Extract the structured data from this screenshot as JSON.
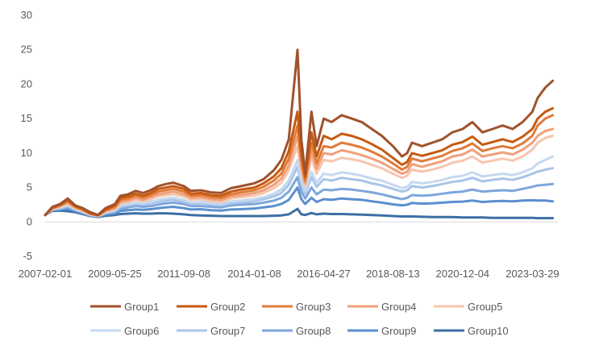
{
  "chart_data": {
    "type": "line",
    "title": "",
    "xlabel": "",
    "ylabel": "",
    "ylim": [
      -5,
      30
    ],
    "yticks": [
      -5,
      0,
      5,
      10,
      15,
      20,
      25,
      30
    ],
    "ytick_labels": [
      "-5",
      "0",
      "5",
      "10",
      "15",
      "20",
      "25",
      "30"
    ],
    "xlim": [
      "2007-02-01",
      "2024-02-01"
    ],
    "xticks": [
      "2007-02-01",
      "2009-05-25",
      "2011-09-08",
      "2014-01-08",
      "2016-04-27",
      "2018-08-13",
      "2020-12-04",
      "2023-03-29"
    ],
    "grid": false,
    "legend": "bottom",
    "x": [
      "2007-02-01",
      "2007-05-01",
      "2007-08-01",
      "2007-11-01",
      "2008-02-01",
      "2008-05-01",
      "2008-08-01",
      "2008-11-01",
      "2009-02-01",
      "2009-05-25",
      "2009-08-01",
      "2009-11-01",
      "2010-02-01",
      "2010-05-01",
      "2010-08-01",
      "2010-11-01",
      "2011-02-01",
      "2011-05-01",
      "2011-09-08",
      "2011-12-01",
      "2012-04-01",
      "2012-08-01",
      "2012-12-01",
      "2013-04-01",
      "2013-08-01",
      "2014-01-08",
      "2014-05-01",
      "2014-09-01",
      "2014-12-01",
      "2015-03-01",
      "2015-06-15",
      "2015-08-01",
      "2015-09-15",
      "2015-12-01",
      "2016-02-01",
      "2016-04-27",
      "2016-08-01",
      "2016-12-01",
      "2017-04-01",
      "2017-08-01",
      "2017-12-01",
      "2018-04-01",
      "2018-08-13",
      "2018-12-01",
      "2019-02-01",
      "2019-04-01",
      "2019-08-01",
      "2019-12-01",
      "2020-04-01",
      "2020-08-01",
      "2020-12-04",
      "2021-04-01",
      "2021-08-01",
      "2021-12-01",
      "2022-04-01",
      "2022-08-01",
      "2022-12-01",
      "2023-03-29",
      "2023-06-01",
      "2023-09-01",
      "2023-12-01"
    ],
    "series": [
      {
        "name": "Group1",
        "color": "#a0522d",
        "values": [
          1.0,
          2.2,
          2.6,
          3.4,
          2.4,
          2.0,
          1.4,
          1.0,
          2.0,
          2.6,
          3.8,
          4.0,
          4.5,
          4.2,
          4.6,
          5.2,
          5.5,
          5.7,
          5.2,
          4.5,
          4.6,
          4.3,
          4.2,
          4.9,
          5.2,
          5.6,
          6.2,
          7.5,
          9.0,
          12.0,
          25.0,
          12.0,
          7.0,
          16.0,
          11.0,
          15.0,
          14.5,
          15.5,
          15.0,
          14.5,
          13.5,
          12.5,
          11.0,
          9.5,
          10.0,
          11.5,
          11.0,
          11.5,
          12.0,
          13.0,
          13.5,
          14.5,
          13.0,
          13.5,
          14.0,
          13.5,
          14.5,
          16.0,
          18.0,
          19.5,
          20.5
        ]
      },
      {
        "name": "Group2",
        "color": "#c55a11",
        "values": [
          1.0,
          2.1,
          2.5,
          3.2,
          2.3,
          1.9,
          1.3,
          1.0,
          1.8,
          2.4,
          3.5,
          3.7,
          4.1,
          3.8,
          4.2,
          4.8,
          5.0,
          5.2,
          4.8,
          4.1,
          4.2,
          3.9,
          3.8,
          4.4,
          4.7,
          5.0,
          5.6,
          6.6,
          7.8,
          10.3,
          16.0,
          10.0,
          6.5,
          13.0,
          9.5,
          12.5,
          12.0,
          12.8,
          12.5,
          12.0,
          11.3,
          10.5,
          9.3,
          8.3,
          8.7,
          10.0,
          9.6,
          10.0,
          10.4,
          11.2,
          11.6,
          12.4,
          11.2,
          11.6,
          12.0,
          11.6,
          12.4,
          13.5,
          15.0,
          16.0,
          16.5
        ]
      },
      {
        "name": "Group3",
        "color": "#e07b39",
        "values": [
          1.0,
          2.0,
          2.4,
          3.0,
          2.2,
          1.8,
          1.2,
          0.95,
          1.7,
          2.2,
          3.2,
          3.4,
          3.8,
          3.5,
          3.9,
          4.4,
          4.6,
          4.8,
          4.4,
          3.8,
          3.9,
          3.6,
          3.5,
          4.0,
          4.3,
          4.6,
          5.1,
          6.0,
          7.0,
          9.2,
          14.0,
          9.0,
          6.0,
          11.5,
          8.5,
          11.0,
          10.8,
          11.5,
          11.2,
          10.8,
          10.2,
          9.5,
          8.5,
          7.6,
          8.0,
          9.2,
          8.8,
          9.2,
          9.6,
          10.3,
          10.7,
          11.4,
          10.3,
          10.7,
          11.0,
          10.7,
          11.4,
          12.5,
          14.0,
          15.0,
          15.5
        ]
      },
      {
        "name": "Group4",
        "color": "#f0a07a",
        "values": [
          1.0,
          1.95,
          2.3,
          2.8,
          2.1,
          1.7,
          1.15,
          0.9,
          1.6,
          2.0,
          2.9,
          3.1,
          3.5,
          3.2,
          3.6,
          4.0,
          4.2,
          4.4,
          4.0,
          3.5,
          3.6,
          3.3,
          3.2,
          3.7,
          3.9,
          4.2,
          4.6,
          5.4,
          6.3,
          8.2,
          12.5,
          8.0,
          5.6,
          10.3,
          7.7,
          10.0,
          9.8,
          10.4,
          10.1,
          9.7,
          9.2,
          8.6,
          7.7,
          7.0,
          7.3,
          8.4,
          8.0,
          8.4,
          8.8,
          9.5,
          9.8,
          10.5,
          9.5,
          9.8,
          10.1,
          9.8,
          10.5,
          11.5,
          12.5,
          13.2,
          13.5
        ]
      },
      {
        "name": "Group5",
        "color": "#f6c6ae",
        "values": [
          1.0,
          1.9,
          2.2,
          2.6,
          2.0,
          1.6,
          1.1,
          0.88,
          1.5,
          1.9,
          2.7,
          2.9,
          3.2,
          3.0,
          3.3,
          3.7,
          3.9,
          4.0,
          3.7,
          3.2,
          3.3,
          3.0,
          2.9,
          3.4,
          3.6,
          3.8,
          4.2,
          4.9,
          5.7,
          7.5,
          11.0,
          7.2,
          5.2,
          9.3,
          7.0,
          9.0,
          8.8,
          9.3,
          9.1,
          8.8,
          8.3,
          7.8,
          7.0,
          6.4,
          6.7,
          7.6,
          7.3,
          7.6,
          8.0,
          8.6,
          8.9,
          9.5,
          8.6,
          8.9,
          9.2,
          8.9,
          9.5,
          10.5,
          11.5,
          12.2,
          12.5
        ]
      },
      {
        "name": "Group6",
        "color": "#c5d9f0",
        "values": [
          1.0,
          1.85,
          2.1,
          2.4,
          1.9,
          1.5,
          1.05,
          0.85,
          1.4,
          1.7,
          2.4,
          2.6,
          2.8,
          2.7,
          2.9,
          3.2,
          3.4,
          3.5,
          3.2,
          2.8,
          2.9,
          2.7,
          2.6,
          3.0,
          3.1,
          3.3,
          3.6,
          4.1,
          4.7,
          6.0,
          9.0,
          6.0,
          4.5,
          7.3,
          5.7,
          7.0,
          6.8,
          7.2,
          7.0,
          6.7,
          6.3,
          6.0,
          5.4,
          4.9,
          5.1,
          5.8,
          5.6,
          5.8,
          6.1,
          6.5,
          6.7,
          7.2,
          6.6,
          6.8,
          7.0,
          6.8,
          7.2,
          7.8,
          8.5,
          9.0,
          9.5
        ]
      },
      {
        "name": "Group7",
        "color": "#a9c4e8",
        "values": [
          1.0,
          1.8,
          2.0,
          2.3,
          1.8,
          1.45,
          1.0,
          0.82,
          1.3,
          1.6,
          2.2,
          2.4,
          2.6,
          2.5,
          2.7,
          2.9,
          3.1,
          3.2,
          2.9,
          2.6,
          2.7,
          2.5,
          2.4,
          2.7,
          2.8,
          3.0,
          3.3,
          3.7,
          4.2,
          5.4,
          8.0,
          5.4,
          4.1,
          6.5,
          5.1,
          6.2,
          6.0,
          6.4,
          6.2,
          6.0,
          5.6,
          5.3,
          4.8,
          4.4,
          4.6,
          5.2,
          5.0,
          5.2,
          5.5,
          5.8,
          6.0,
          6.4,
          5.9,
          6.1,
          6.3,
          6.1,
          6.5,
          7.0,
          7.3,
          7.6,
          7.8
        ]
      },
      {
        "name": "Group8",
        "color": "#7ea6db",
        "values": [
          1.0,
          1.75,
          1.9,
          2.1,
          1.7,
          1.35,
          0.95,
          0.8,
          1.2,
          1.45,
          1.9,
          2.1,
          2.3,
          2.2,
          2.3,
          2.5,
          2.7,
          2.8,
          2.6,
          2.3,
          2.3,
          2.2,
          2.1,
          2.4,
          2.5,
          2.6,
          2.8,
          3.1,
          3.5,
          4.4,
          6.5,
          4.4,
          3.4,
          5.0,
          4.0,
          4.7,
          4.6,
          4.8,
          4.7,
          4.5,
          4.3,
          4.0,
          3.6,
          3.3,
          3.5,
          3.9,
          3.8,
          3.9,
          4.1,
          4.3,
          4.4,
          4.7,
          4.4,
          4.5,
          4.6,
          4.5,
          4.8,
          5.1,
          5.3,
          5.4,
          5.5
        ]
      },
      {
        "name": "Group9",
        "color": "#5b8fcf",
        "values": [
          1.0,
          1.7,
          1.8,
          1.9,
          1.6,
          1.25,
          0.9,
          0.75,
          1.05,
          1.25,
          1.6,
          1.7,
          1.8,
          1.75,
          1.85,
          2.0,
          2.1,
          2.2,
          2.0,
          1.8,
          1.85,
          1.7,
          1.65,
          1.8,
          1.85,
          1.95,
          2.1,
          2.3,
          2.6,
          3.2,
          5.0,
          3.3,
          2.6,
          3.5,
          2.9,
          3.3,
          3.2,
          3.4,
          3.3,
          3.2,
          3.0,
          2.8,
          2.55,
          2.4,
          2.5,
          2.75,
          2.65,
          2.7,
          2.8,
          2.9,
          2.95,
          3.1,
          2.9,
          3.0,
          3.05,
          3.0,
          3.1,
          3.15,
          3.1,
          3.1,
          3.0
        ]
      },
      {
        "name": "Group10",
        "color": "#3c6fa5",
        "values": [
          1.0,
          1.6,
          1.65,
          1.55,
          1.4,
          1.15,
          0.85,
          0.7,
          0.9,
          1.0,
          1.15,
          1.2,
          1.25,
          1.2,
          1.2,
          1.25,
          1.25,
          1.2,
          1.1,
          1.0,
          0.95,
          0.9,
          0.85,
          0.85,
          0.85,
          0.85,
          0.85,
          0.9,
          0.95,
          1.1,
          1.9,
          1.1,
          1.0,
          1.3,
          1.1,
          1.2,
          1.15,
          1.15,
          1.1,
          1.05,
          1.0,
          0.95,
          0.85,
          0.8,
          0.8,
          0.8,
          0.75,
          0.7,
          0.7,
          0.7,
          0.65,
          0.65,
          0.65,
          0.6,
          0.6,
          0.6,
          0.6,
          0.6,
          0.55,
          0.55,
          0.55
        ]
      }
    ]
  }
}
